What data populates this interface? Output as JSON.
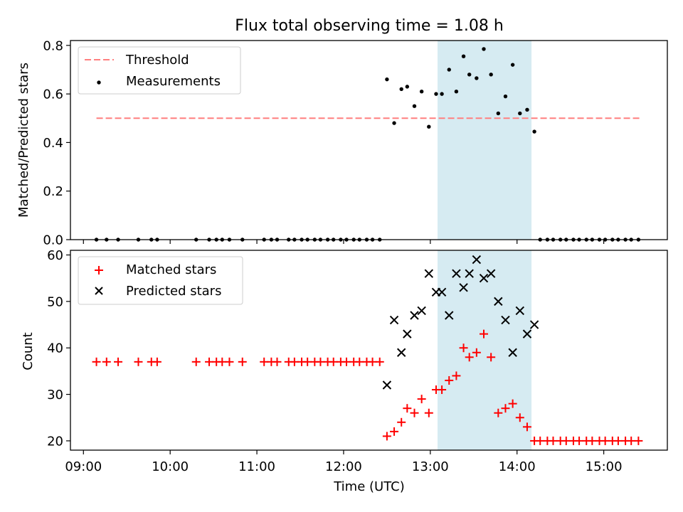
{
  "colors": {
    "highlight": "#add8e6",
    "threshold": "#ff7f7f",
    "measurement": "#000000",
    "matched": "#ff0000",
    "predicted": "#000000"
  },
  "chart_data": [
    {
      "type": "scatter",
      "title": "Flux total observing time = 1.08 h",
      "ylabel": "Matched/Predicted stars",
      "xlabel": "",
      "xlim": [
        "08:51",
        "15:44"
      ],
      "ylim": [
        0,
        0.82
      ],
      "yticks": [
        "0.0",
        "0.2",
        "0.4",
        "0.6",
        "0.8"
      ],
      "highlight_span": [
        "13:05",
        "14:10"
      ],
      "legend": {
        "placement": "upper-left",
        "entries": [
          {
            "label": "Threshold",
            "style": "dashed-line"
          },
          {
            "label": "Measurements",
            "style": "dot"
          }
        ]
      },
      "threshold": {
        "value": 0.5,
        "x_start": "09:09",
        "x_end": "15:26"
      },
      "series": [
        {
          "name": "Measurements",
          "points": [
            [
              "09:09",
              0
            ],
            [
              "09:16",
              0
            ],
            [
              "09:24",
              0
            ],
            [
              "09:38",
              0
            ],
            [
              "09:47",
              0
            ],
            [
              "09:51",
              0
            ],
            [
              "10:18",
              0
            ],
            [
              "10:27",
              0
            ],
            [
              "10:32",
              0
            ],
            [
              "10:36",
              0
            ],
            [
              "10:41",
              0
            ],
            [
              "10:50",
              0
            ],
            [
              "11:05",
              0
            ],
            [
              "11:10",
              0
            ],
            [
              "11:14",
              0
            ],
            [
              "11:22",
              0
            ],
            [
              "11:26",
              0
            ],
            [
              "11:31",
              0
            ],
            [
              "11:35",
              0
            ],
            [
              "11:40",
              0
            ],
            [
              "11:44",
              0
            ],
            [
              "11:49",
              0
            ],
            [
              "11:53",
              0
            ],
            [
              "11:58",
              0
            ],
            [
              "12:02",
              0
            ],
            [
              "12:07",
              0
            ],
            [
              "12:11",
              0
            ],
            [
              "12:16",
              0
            ],
            [
              "12:20",
              0
            ],
            [
              "12:25",
              0
            ],
            [
              "12:30",
              0.66
            ],
            [
              "12:35",
              0.48
            ],
            [
              "12:40",
              0.62
            ],
            [
              "12:44",
              0.63
            ],
            [
              "12:49",
              0.55
            ],
            [
              "12:54",
              0.61
            ],
            [
              "12:59",
              0.465
            ],
            [
              "13:04",
              0.6
            ],
            [
              "13:08",
              0.6
            ],
            [
              "13:13",
              0.7
            ],
            [
              "13:18",
              0.61
            ],
            [
              "13:23",
              0.755
            ],
            [
              "13:27",
              0.68
            ],
            [
              "13:32",
              0.665
            ],
            [
              "13:37",
              0.785
            ],
            [
              "13:42",
              0.68
            ],
            [
              "13:47",
              0.52
            ],
            [
              "13:52",
              0.59
            ],
            [
              "13:57",
              0.72
            ],
            [
              "14:02",
              0.52
            ],
            [
              "14:07",
              0.535
            ],
            [
              "14:12",
              0.445
            ],
            [
              "14:16",
              0
            ],
            [
              "14:21",
              0
            ],
            [
              "14:25",
              0
            ],
            [
              "14:30",
              0
            ],
            [
              "14:34",
              0
            ],
            [
              "14:39",
              0
            ],
            [
              "14:43",
              0
            ],
            [
              "14:48",
              0
            ],
            [
              "14:52",
              0
            ],
            [
              "14:57",
              0
            ],
            [
              "15:01",
              0
            ],
            [
              "15:06",
              0
            ],
            [
              "15:10",
              0
            ],
            [
              "15:15",
              0
            ],
            [
              "15:19",
              0
            ],
            [
              "15:24",
              0
            ]
          ]
        }
      ]
    },
    {
      "type": "scatter",
      "title": "",
      "ylabel": "Count",
      "xlabel": "Time (UTC)",
      "xlim": [
        "08:51",
        "15:44"
      ],
      "ylim": [
        18,
        61
      ],
      "yticks": [
        "20",
        "30",
        "40",
        "50",
        "60"
      ],
      "xticks": [
        "09:00",
        "10:00",
        "11:00",
        "12:00",
        "13:00",
        "14:00",
        "15:00"
      ],
      "highlight_span": [
        "13:05",
        "14:10"
      ],
      "legend": {
        "placement": "upper-left",
        "entries": [
          {
            "label": "Matched stars",
            "style": "plus"
          },
          {
            "label": "Predicted stars",
            "style": "x"
          }
        ]
      },
      "series": [
        {
          "name": "Matched stars",
          "points": [
            [
              "09:09",
              37
            ],
            [
              "09:16",
              37
            ],
            [
              "09:24",
              37
            ],
            [
              "09:38",
              37
            ],
            [
              "09:47",
              37
            ],
            [
              "09:51",
              37
            ],
            [
              "10:18",
              37
            ],
            [
              "10:27",
              37
            ],
            [
              "10:32",
              37
            ],
            [
              "10:36",
              37
            ],
            [
              "10:41",
              37
            ],
            [
              "10:50",
              37
            ],
            [
              "11:05",
              37
            ],
            [
              "11:10",
              37
            ],
            [
              "11:14",
              37
            ],
            [
              "11:22",
              37
            ],
            [
              "11:26",
              37
            ],
            [
              "11:31",
              37
            ],
            [
              "11:35",
              37
            ],
            [
              "11:40",
              37
            ],
            [
              "11:44",
              37
            ],
            [
              "11:49",
              37
            ],
            [
              "11:53",
              37
            ],
            [
              "11:58",
              37
            ],
            [
              "12:02",
              37
            ],
            [
              "12:07",
              37
            ],
            [
              "12:11",
              37
            ],
            [
              "12:16",
              37
            ],
            [
              "12:20",
              37
            ],
            [
              "12:25",
              37
            ],
            [
              "12:30",
              21
            ],
            [
              "12:35",
              22
            ],
            [
              "12:40",
              24
            ],
            [
              "12:44",
              27
            ],
            [
              "12:49",
              26
            ],
            [
              "12:54",
              29
            ],
            [
              "12:59",
              26
            ],
            [
              "13:04",
              31
            ],
            [
              "13:08",
              31
            ],
            [
              "13:13",
              33
            ],
            [
              "13:18",
              34
            ],
            [
              "13:23",
              40
            ],
            [
              "13:27",
              38
            ],
            [
              "13:32",
              39
            ],
            [
              "13:37",
              43
            ],
            [
              "13:42",
              38
            ],
            [
              "13:47",
              26
            ],
            [
              "13:52",
              27
            ],
            [
              "13:57",
              28
            ],
            [
              "14:02",
              25
            ],
            [
              "14:07",
              23
            ],
            [
              "14:12",
              20
            ],
            [
              "14:16",
              20
            ],
            [
              "14:21",
              20
            ],
            [
              "14:25",
              20
            ],
            [
              "14:30",
              20
            ],
            [
              "14:34",
              20
            ],
            [
              "14:39",
              20
            ],
            [
              "14:43",
              20
            ],
            [
              "14:48",
              20
            ],
            [
              "14:52",
              20
            ],
            [
              "14:57",
              20
            ],
            [
              "15:01",
              20
            ],
            [
              "15:06",
              20
            ],
            [
              "15:10",
              20
            ],
            [
              "15:15",
              20
            ],
            [
              "15:19",
              20
            ],
            [
              "15:24",
              20
            ]
          ]
        },
        {
          "name": "Predicted stars",
          "points": [
            [
              "12:30",
              32
            ],
            [
              "12:35",
              46
            ],
            [
              "12:40",
              39
            ],
            [
              "12:44",
              43
            ],
            [
              "12:49",
              47
            ],
            [
              "12:54",
              48
            ],
            [
              "12:59",
              56
            ],
            [
              "13:04",
              52
            ],
            [
              "13:08",
              52
            ],
            [
              "13:13",
              47
            ],
            [
              "13:18",
              56
            ],
            [
              "13:23",
              53
            ],
            [
              "13:27",
              56
            ],
            [
              "13:32",
              59
            ],
            [
              "13:37",
              55
            ],
            [
              "13:42",
              56
            ],
            [
              "13:47",
              50
            ],
            [
              "13:52",
              46
            ],
            [
              "13:57",
              39
            ],
            [
              "14:02",
              48
            ],
            [
              "14:07",
              43
            ],
            [
              "14:12",
              45
            ]
          ]
        }
      ]
    }
  ]
}
